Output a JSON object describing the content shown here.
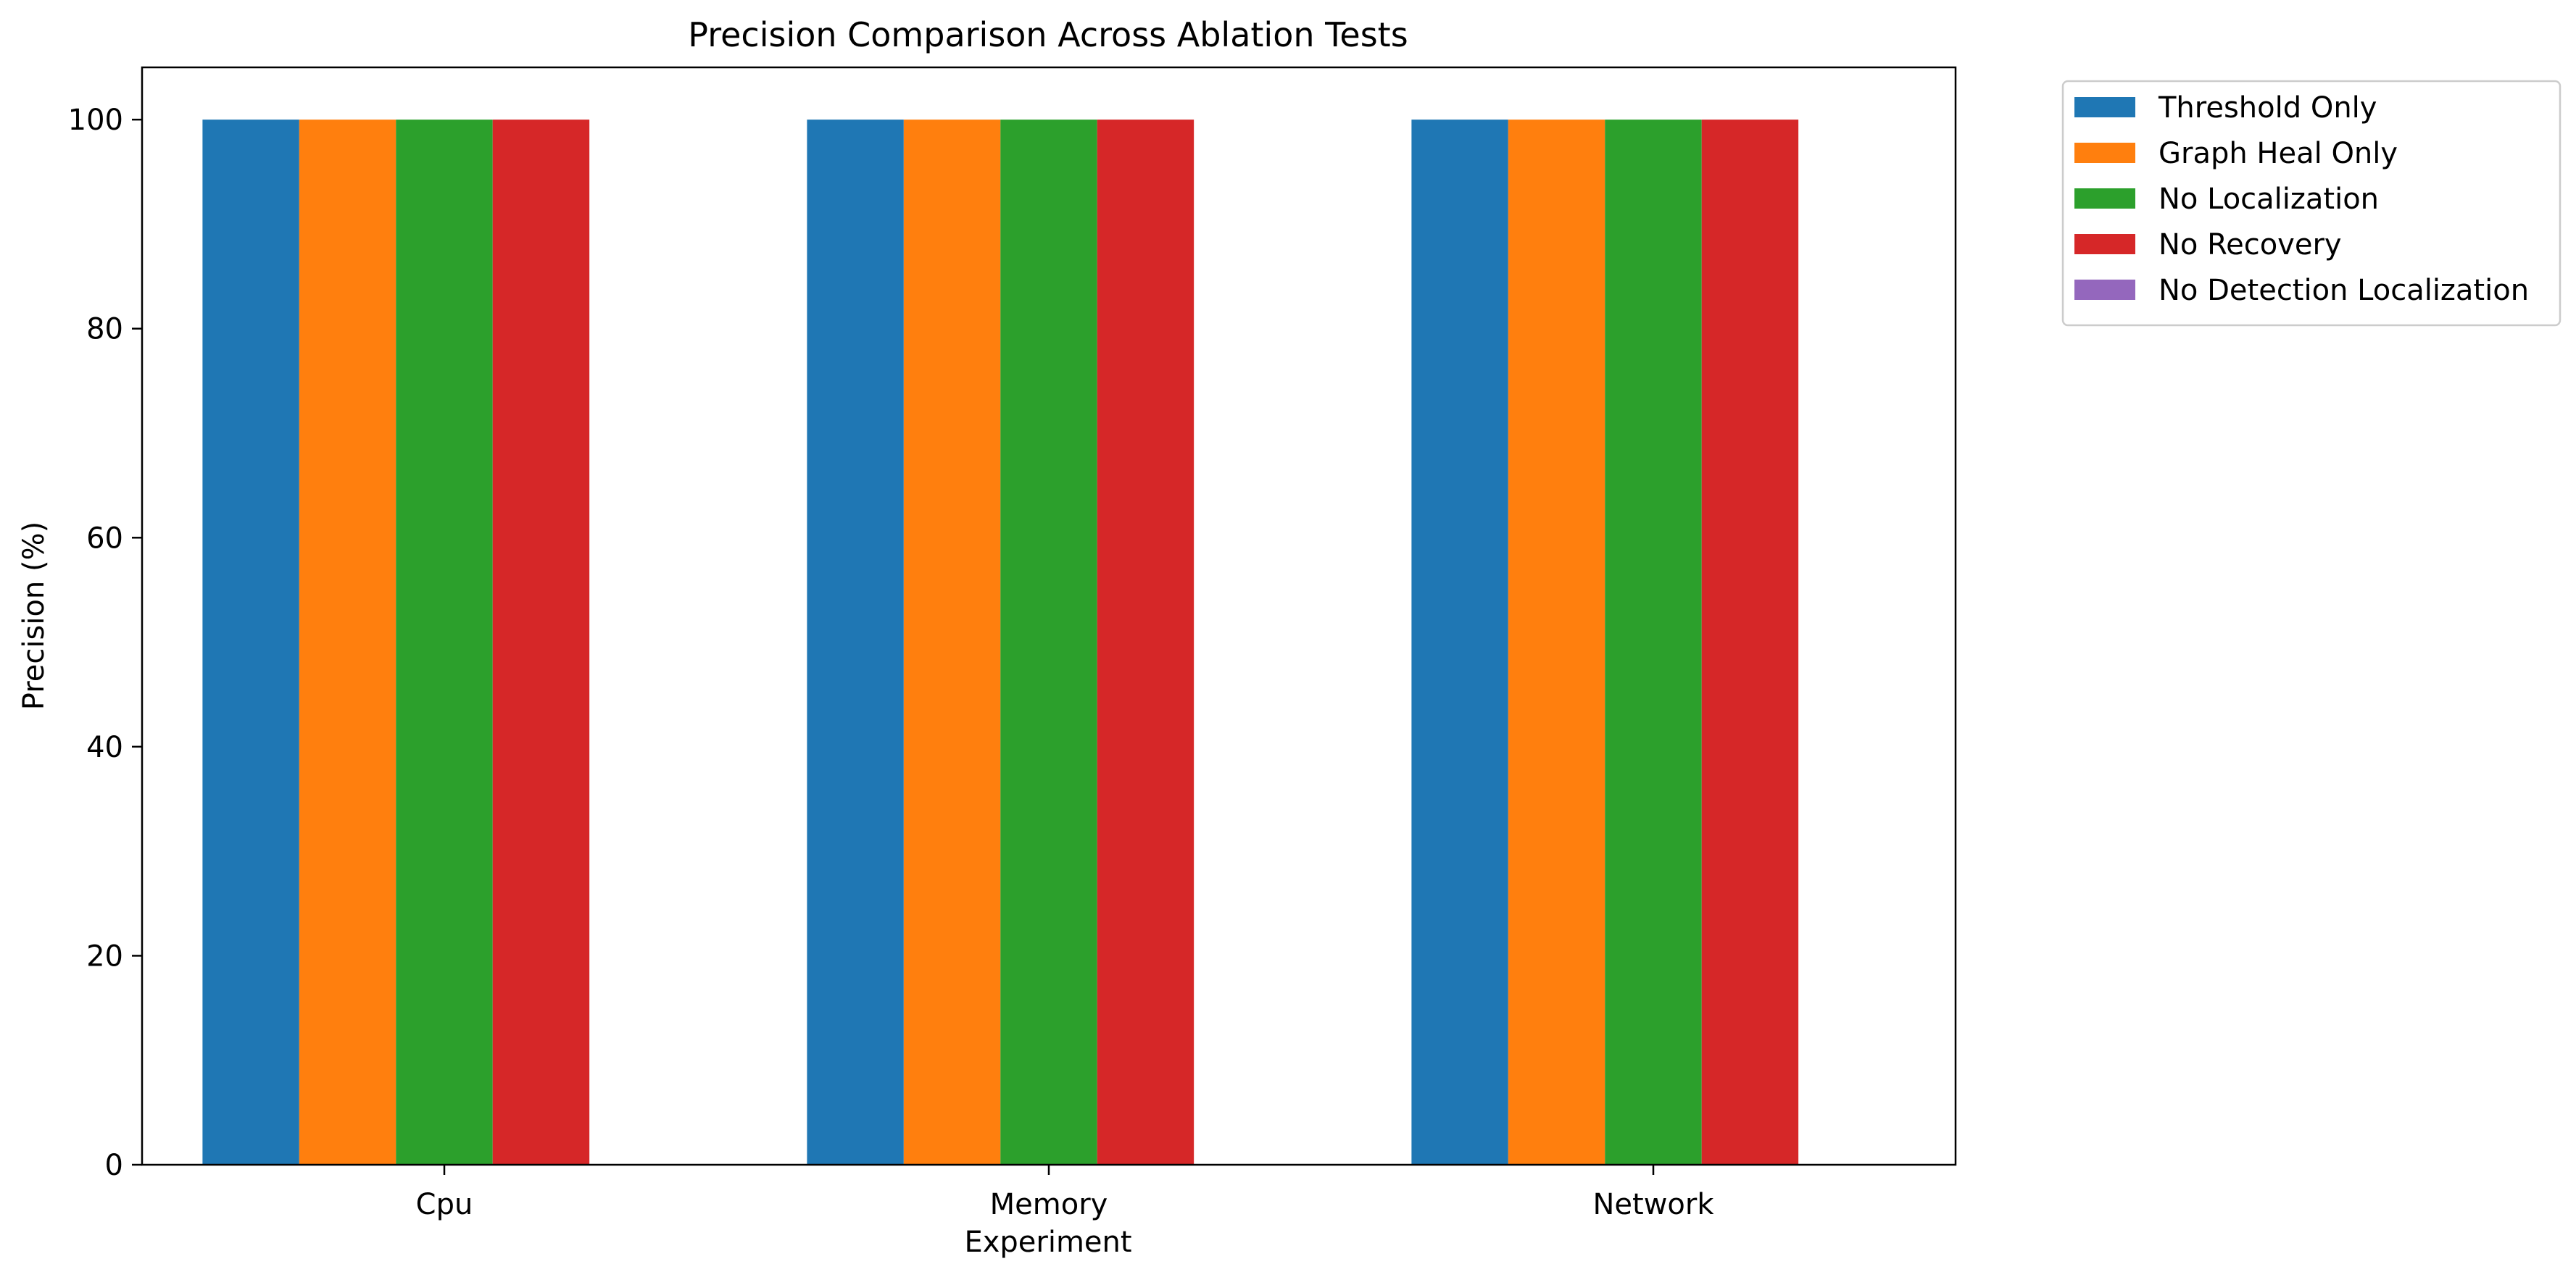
{
  "chart_data": {
    "type": "bar",
    "title": "Precision Comparison Across Ablation Tests",
    "xlabel": "Experiment",
    "ylabel": "Precision (%)",
    "categories": [
      "Cpu",
      "Memory",
      "Network"
    ],
    "ylim": [
      0,
      105
    ],
    "yticks": [
      0,
      20,
      40,
      60,
      80,
      100
    ],
    "grid": false,
    "legend_position": "outside-top-right",
    "series": [
      {
        "name": "Threshold Only",
        "color": "#1f77b4",
        "values": [
          100,
          100,
          100
        ]
      },
      {
        "name": "Graph Heal Only",
        "color": "#ff7f0e",
        "values": [
          100,
          100,
          100
        ]
      },
      {
        "name": "No Localization",
        "color": "#2ca02c",
        "values": [
          100,
          100,
          100
        ]
      },
      {
        "name": "No Recovery",
        "color": "#d62728",
        "values": [
          100,
          100,
          100
        ]
      },
      {
        "name": "No Detection Localization",
        "color": "#9467bd",
        "values": [
          null,
          null,
          null
        ]
      }
    ]
  }
}
